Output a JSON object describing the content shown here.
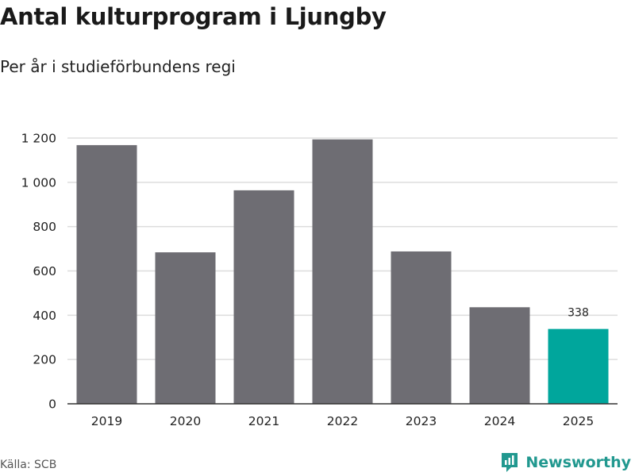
{
  "title": "Antal kulturprogram i Ljungby",
  "subtitle": "Per år i studieförbundens regi",
  "source": "Källa: SCB",
  "brand": {
    "name": "Newsworthy",
    "icon": "newsworthy-logo-icon"
  },
  "colors": {
    "bar": "#6e6d73",
    "highlight": "#00a69c",
    "grid": "#dddddd",
    "brand": "#21988f"
  },
  "chart_data": {
    "type": "bar",
    "categories": [
      "2019",
      "2020",
      "2021",
      "2022",
      "2023",
      "2024",
      "2025"
    ],
    "values": [
      1168,
      684,
      964,
      1194,
      688,
      436,
      338
    ],
    "data_labels": {
      "2025": "338"
    },
    "highlight_category": "2025",
    "ylim": [
      0,
      1200
    ],
    "yticks": [
      0,
      200,
      400,
      600,
      800,
      1000,
      1200
    ],
    "ytick_labels": [
      "0",
      "200",
      "400",
      "600",
      "800",
      "1 000",
      "1 200"
    ],
    "xlabel": "",
    "ylabel": "",
    "grid": true,
    "legend": "none"
  }
}
